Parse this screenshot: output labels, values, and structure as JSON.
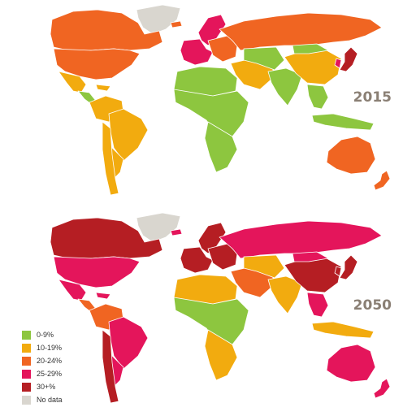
{
  "maps": [
    {
      "year": "2015",
      "regions": {
        "greenland": "nodata",
        "canada": "c20",
        "usa": "c20",
        "mexico": "c10",
        "central_america": "c0",
        "caribbean": "c10",
        "south_america_north": "c10",
        "brazil": "c10",
        "south_america_south": "c10",
        "chile_argentina": "c10",
        "iceland": "c20",
        "scandinavia": "c25",
        "western_europe": "c25",
        "eastern_europe": "c20",
        "russia": "c20",
        "middle_east": "c10",
        "north_africa": "c0",
        "sub_saharan_africa": "c0",
        "southern_africa": "c0",
        "central_asia": "c0",
        "south_asia": "c0",
        "china": "c10",
        "mongolia": "c0",
        "japan": "c30",
        "korea": "c25",
        "southeast_asia": "c0",
        "indonesia": "c0",
        "australia": "c20",
        "new_zealand": "c20"
      }
    },
    {
      "year": "2050",
      "regions": {
        "greenland": "nodata",
        "canada": "c30",
        "usa": "c25",
        "mexico": "c25",
        "central_america": "c20",
        "caribbean": "c25",
        "south_america_north": "c20",
        "brazil": "c25",
        "south_america_south": "c25",
        "chile_argentina": "c30",
        "iceland": "c25",
        "scandinavia": "c30",
        "western_europe": "c30",
        "eastern_europe": "c30",
        "russia": "c25",
        "middle_east": "c20",
        "north_africa": "c10",
        "sub_saharan_africa": "c0",
        "southern_africa": "c10",
        "central_asia": "c10",
        "south_asia": "c10",
        "china": "c30",
        "mongolia": "c25",
        "japan": "c30",
        "korea": "c30",
        "southeast_asia": "c25",
        "indonesia": "c10",
        "australia": "c25",
        "new_zealand": "c25"
      }
    }
  ],
  "legend": [
    {
      "key": "c0",
      "label": "0-9%",
      "color": "#8dc63f"
    },
    {
      "key": "c10",
      "label": "10-19%",
      "color": "#f2ab0f"
    },
    {
      "key": "c20",
      "label": "20-24%",
      "color": "#f06522"
    },
    {
      "key": "c25",
      "label": "25-29%",
      "color": "#e4155b"
    },
    {
      "key": "c30",
      "label": "30+%",
      "color": "#b51e23"
    },
    {
      "key": "nodata",
      "label": "No data",
      "color": "#d9d6cf"
    }
  ]
}
